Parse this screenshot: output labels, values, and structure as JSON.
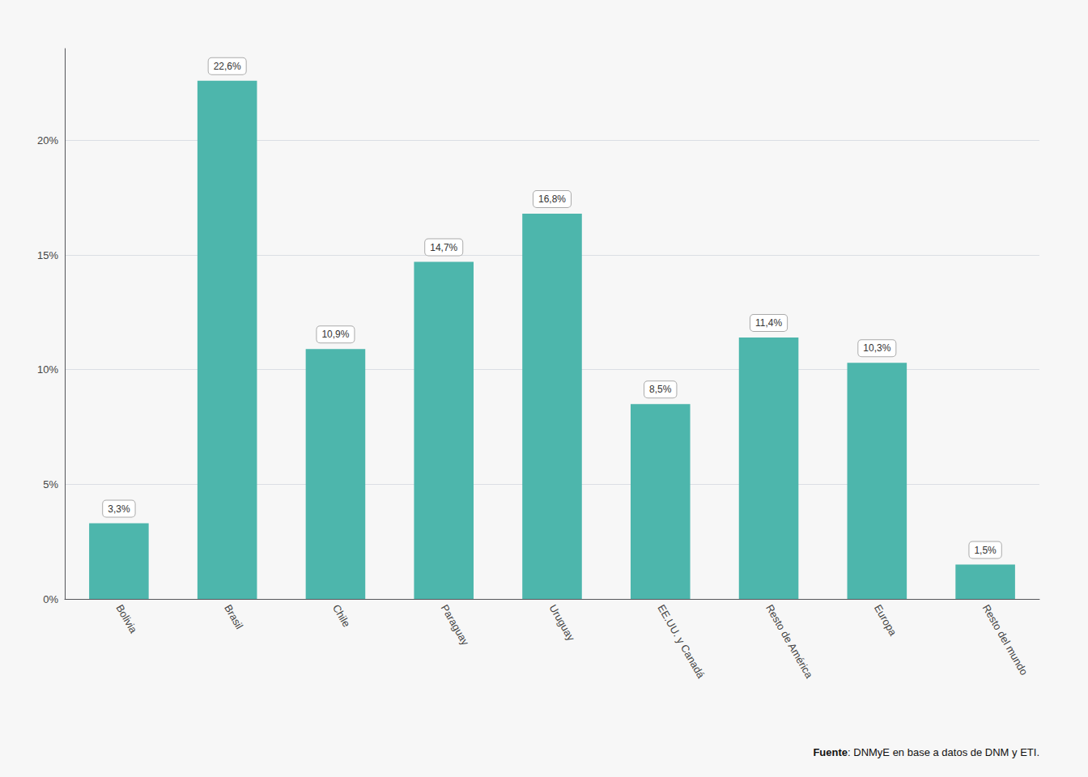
{
  "chart_data": {
    "type": "bar",
    "categories": [
      "Bolivia",
      "Brasil",
      "Chile",
      "Paraguay",
      "Uruguay",
      "EE.UU. y Canadá",
      "Resto de América",
      "Europa",
      "Resto del mundo"
    ],
    "values": [
      3.3,
      22.6,
      10.9,
      14.7,
      16.8,
      8.5,
      11.4,
      10.3,
      1.5
    ],
    "value_labels": [
      "3,3%",
      "22,6%",
      "10,9%",
      "14,7%",
      "16,8%",
      "8,5%",
      "11,4%",
      "10,3%",
      "1,5%"
    ],
    "data_labels": true,
    "color": "#4DB6AC",
    "ylim": [
      0,
      24
    ],
    "yticks": [
      {
        "value": 0,
        "label": "0%"
      },
      {
        "value": 5,
        "label": "5%"
      },
      {
        "value": 10,
        "label": "10%"
      },
      {
        "value": 15,
        "label": "15%"
      },
      {
        "value": 20,
        "label": "20%"
      }
    ],
    "grid": true,
    "source": [
      "Fuente",
      ": DNMyE en base a datos de DNM y ETI."
    ]
  }
}
